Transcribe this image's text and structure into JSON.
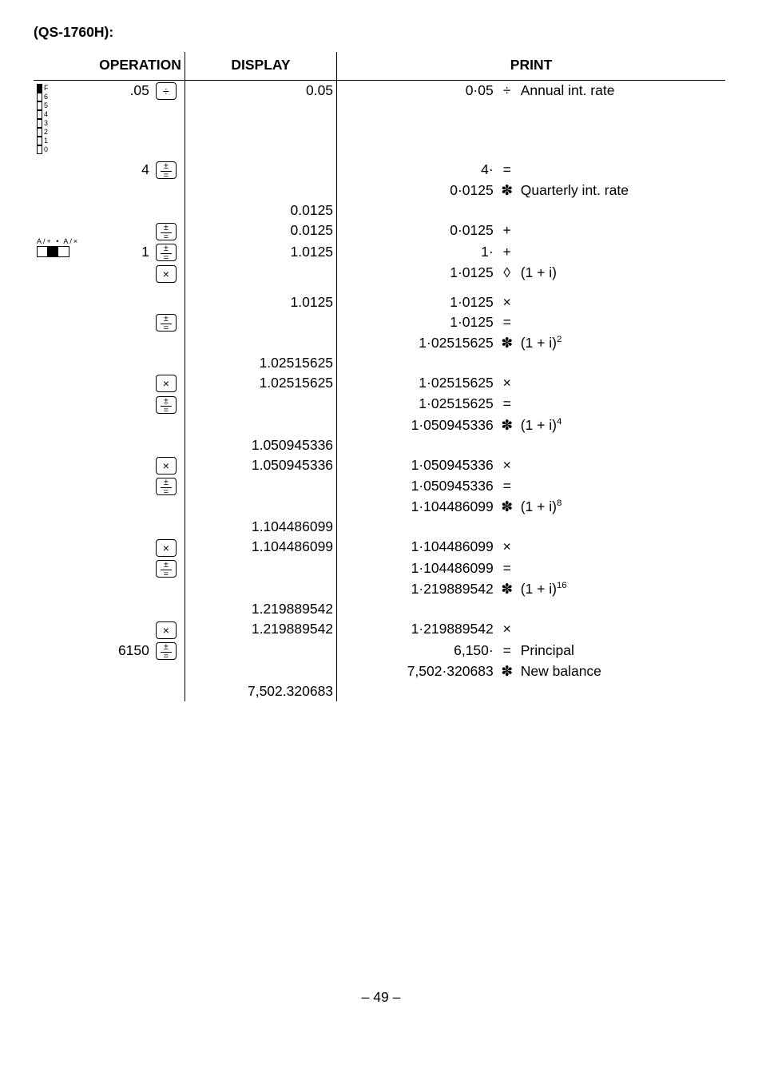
{
  "title": "(QS-1760H):",
  "headers": {
    "operation": "OPERATION",
    "display": "DISPLAY",
    "print": "PRINT"
  },
  "rows": [
    {
      "op_num": ".05",
      "op_key": "div",
      "display": "0.05",
      "prn_num": "0·05",
      "prn_sym": "÷",
      "prn_ann": "Annual int. rate"
    },
    {
      "op_num": "4",
      "op_key": "pm_eq",
      "display": "",
      "prn_num": "4·",
      "prn_sym": "=",
      "prn_ann": ""
    },
    {
      "op_num": "",
      "op_key": "",
      "display": "",
      "prn_num": "0·0125",
      "prn_sym": "✽",
      "prn_ann": "Quarterly int. rate"
    },
    {
      "op_num": "",
      "op_key": "",
      "display": "0.0125",
      "prn_num": "",
      "prn_sym": "",
      "prn_ann": ""
    },
    {
      "op_num": "",
      "op_key": "pm_eq",
      "display": "0.0125",
      "prn_num": "0·0125",
      "prn_sym": "+",
      "prn_ann": ""
    },
    {
      "op_num": "1",
      "op_key": "pm_eq",
      "display": "1.0125",
      "prn_num": "1·",
      "prn_sym": "+",
      "prn_ann": ""
    },
    {
      "op_num": "",
      "op_key": "times",
      "display": "",
      "prn_num": "1·0125",
      "prn_sym": "◊",
      "prn_ann": "(1 + i)"
    },
    {
      "spacer": true
    },
    {
      "op_num": "",
      "op_key": "",
      "display": "1.0125",
      "prn_num": "1·0125",
      "prn_sym": "×",
      "prn_ann": ""
    },
    {
      "op_num": "",
      "op_key": "pm_eq",
      "display": "",
      "prn_num": "1·0125",
      "prn_sym": "=",
      "prn_ann": ""
    },
    {
      "op_num": "",
      "op_key": "",
      "display": "",
      "prn_num": "1·02515625",
      "prn_sym": "✽",
      "prn_ann_html": "(1 + i)<sup>2</sup>"
    },
    {
      "op_num": "",
      "op_key": "",
      "display": "1.02515625",
      "prn_num": "",
      "prn_sym": "",
      "prn_ann": ""
    },
    {
      "op_num": "",
      "op_key": "times",
      "display": "1.02515625",
      "prn_num": "1·02515625",
      "prn_sym": "×",
      "prn_ann": ""
    },
    {
      "op_num": "",
      "op_key": "pm_eq",
      "display": "",
      "prn_num": "1·02515625",
      "prn_sym": "=",
      "prn_ann": ""
    },
    {
      "op_num": "",
      "op_key": "",
      "display": "",
      "prn_num": "1·050945336",
      "prn_sym": "✽",
      "prn_ann_html": "(1 + i)<sup>4</sup>"
    },
    {
      "op_num": "",
      "op_key": "",
      "display": "1.050945336",
      "prn_num": "",
      "prn_sym": "",
      "prn_ann": ""
    },
    {
      "op_num": "",
      "op_key": "times",
      "display": "1.050945336",
      "prn_num": "1·050945336",
      "prn_sym": "×",
      "prn_ann": ""
    },
    {
      "op_num": "",
      "op_key": "pm_eq",
      "display": "",
      "prn_num": "1·050945336",
      "prn_sym": "=",
      "prn_ann": ""
    },
    {
      "op_num": "",
      "op_key": "",
      "display": "",
      "prn_num": "1·104486099",
      "prn_sym": "✽",
      "prn_ann_html": "(1 + i)<sup>8</sup>"
    },
    {
      "op_num": "",
      "op_key": "",
      "display": "1.104486099",
      "prn_num": "",
      "prn_sym": "",
      "prn_ann": ""
    },
    {
      "op_num": "",
      "op_key": "times",
      "display": "1.104486099",
      "prn_num": "1·104486099",
      "prn_sym": "×",
      "prn_ann": ""
    },
    {
      "op_num": "",
      "op_key": "pm_eq",
      "display": "",
      "prn_num": "1·104486099",
      "prn_sym": "=",
      "prn_ann": ""
    },
    {
      "op_num": "",
      "op_key": "",
      "display": "",
      "prn_num": "1·219889542",
      "prn_sym": "✽",
      "prn_ann_html": "(1 + i)<sup>16</sup>"
    },
    {
      "op_num": "",
      "op_key": "",
      "display": "1.219889542",
      "prn_num": "",
      "prn_sym": "",
      "prn_ann": ""
    },
    {
      "op_num": "",
      "op_key": "times",
      "display": "1.219889542",
      "prn_num": "1·219889542",
      "prn_sym": "×",
      "prn_ann": ""
    },
    {
      "op_num": "6150",
      "op_key": "pm_eq",
      "display": "",
      "prn_num": "6,150·",
      "prn_sym": "=",
      "prn_ann": "Principal"
    },
    {
      "op_num": "",
      "op_key": "",
      "display": "",
      "prn_num": "7,502·320683",
      "prn_sym": "✽",
      "prn_ann": "New balance"
    },
    {
      "op_num": "",
      "op_key": "",
      "display": "7,502.320683",
      "prn_num": "",
      "prn_sym": "",
      "prn_ann": ""
    }
  ],
  "keys": {
    "div": "÷",
    "times": "×",
    "pm_eq": "±="
  },
  "footer": "– 49 –",
  "colors": {
    "text": "#000000",
    "bg": "#ffffff",
    "rule": "#000000"
  },
  "fontsizes": {
    "body": 17.5,
    "header": 17.5,
    "keys": 14,
    "switch": 9
  }
}
